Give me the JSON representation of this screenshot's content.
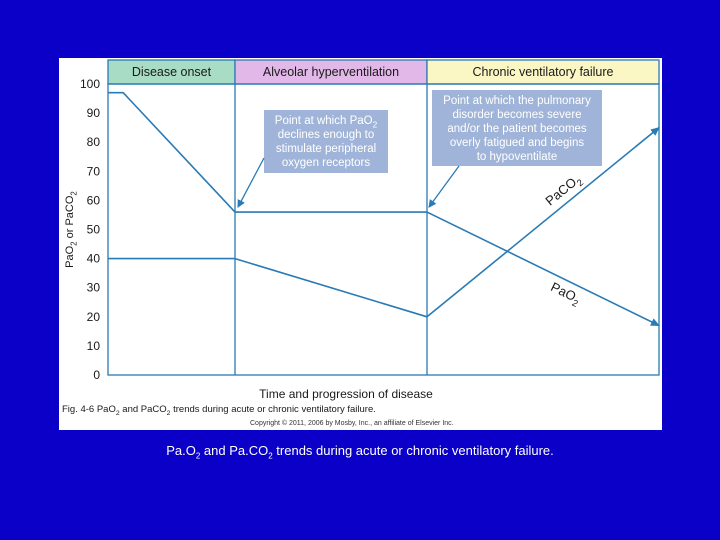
{
  "colors": {
    "slide_background": "#0a00c8",
    "line_color": "#2a7ab5",
    "phase_onset_bg": "#a8dcc4",
    "phase_hyper_bg": "#e2b8e8",
    "phase_chronic_bg": "#fbf7c4",
    "callout_bg": "#9fb4d8"
  },
  "caption": {
    "prefix": "Pa.O",
    "sub1": "2",
    "middle": " and Pa.CO",
    "sub2": "2",
    "suffix": " trends during acute or chronic ventilatory failure."
  },
  "chart_data": {
    "type": "line",
    "ylabel": "PaO₂ or PaCO₂",
    "xlabel": "Time and progression of disease",
    "ylim": [
      0,
      100
    ],
    "yticks": [
      0,
      10,
      20,
      30,
      40,
      50,
      60,
      70,
      80,
      90,
      100
    ],
    "x_axis_units": "relative time (phase boundaries at 1 and 2)",
    "xlim": [
      0,
      3
    ],
    "phases": [
      {
        "label": "Disease onset",
        "start": 0,
        "end": 1
      },
      {
        "label": "Alveolar hyperventilation",
        "start": 1,
        "end": 2
      },
      {
        "label": "Chronic ventilatory failure",
        "start": 2,
        "end": 3
      }
    ],
    "series": [
      {
        "name": "PaO₂",
        "x": [
          0,
          0.12,
          1,
          2,
          3
        ],
        "y": [
          97,
          97,
          56,
          56,
          17
        ]
      },
      {
        "name": "PaCO₂",
        "x": [
          0,
          1,
          2,
          3
        ],
        "y": [
          40,
          40,
          20,
          85
        ]
      }
    ],
    "annotations": [
      {
        "text": [
          "Point at which PaO₂",
          "declines enough to",
          "stimulate peripheral",
          "oxygen receptors"
        ],
        "target": {
          "x": 1,
          "y": 56
        }
      },
      {
        "text": [
          "Point at which the pulmonary",
          "disorder becomes severe",
          "and/or the patient becomes",
          "overly fatigued and begins",
          "to hypoventilate"
        ],
        "target": {
          "x": 2,
          "y": 56
        }
      }
    ],
    "figure_caption": "Fig. 4-6  PaO₂ and PaCO₂ trends during acute or chronic ventilatory failure.",
    "copyright": "Copyright © 2011, 2006 by Mosby, Inc., an affiliate of Elsevier Inc."
  }
}
